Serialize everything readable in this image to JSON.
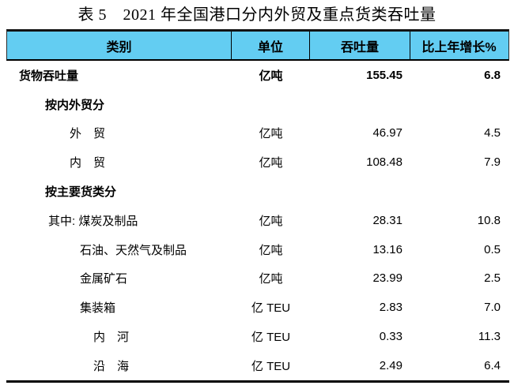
{
  "title": "表 5　2021 年全国港口分内外贸及重点货类吞吐量",
  "colors": {
    "header_bg": "#63cdf2",
    "rule": "#000000",
    "text": "#000000"
  },
  "table": {
    "columns": [
      "类别",
      "单位",
      "吞吐量",
      "比上年增长%"
    ],
    "rows": [
      {
        "label": "货物吞吐量",
        "indent": 0,
        "bold": true,
        "unit": "亿吨",
        "value": "155.45",
        "growth": "6.8"
      },
      {
        "label": "按内外贸分",
        "indent": 1,
        "bold": true,
        "unit": "",
        "value": "",
        "growth": ""
      },
      {
        "label": "外　贸",
        "indent": 2,
        "bold": false,
        "unit": "亿吨",
        "value": "46.97",
        "growth": "4.5"
      },
      {
        "label": "内　贸",
        "indent": 2,
        "bold": false,
        "unit": "亿吨",
        "value": "108.48",
        "growth": "7.9"
      },
      {
        "label": "按主要货类分",
        "indent": 1,
        "bold": true,
        "unit": "",
        "value": "",
        "growth": ""
      },
      {
        "label": "其中: 煤炭及制品",
        "indent": 3,
        "bold": false,
        "unit": "亿吨",
        "value": "28.31",
        "growth": "10.8"
      },
      {
        "label": "石油、天然气及制品",
        "indent": 4,
        "bold": false,
        "unit": "亿吨",
        "value": "13.16",
        "growth": "0.5"
      },
      {
        "label": "金属矿石",
        "indent": 4,
        "bold": false,
        "unit": "亿吨",
        "value": "23.99",
        "growth": "2.5"
      },
      {
        "label": "集装箱",
        "indent": 4,
        "bold": false,
        "unit": "亿 TEU",
        "value": "2.83",
        "growth": "7.0"
      },
      {
        "label": "内　河",
        "indent": 5,
        "bold": false,
        "unit": "亿 TEU",
        "value": "0.33",
        "growth": "11.3"
      },
      {
        "label": "沿　海",
        "indent": 5,
        "bold": false,
        "unit": "亿 TEU",
        "value": "2.49",
        "growth": "6.4"
      }
    ]
  }
}
